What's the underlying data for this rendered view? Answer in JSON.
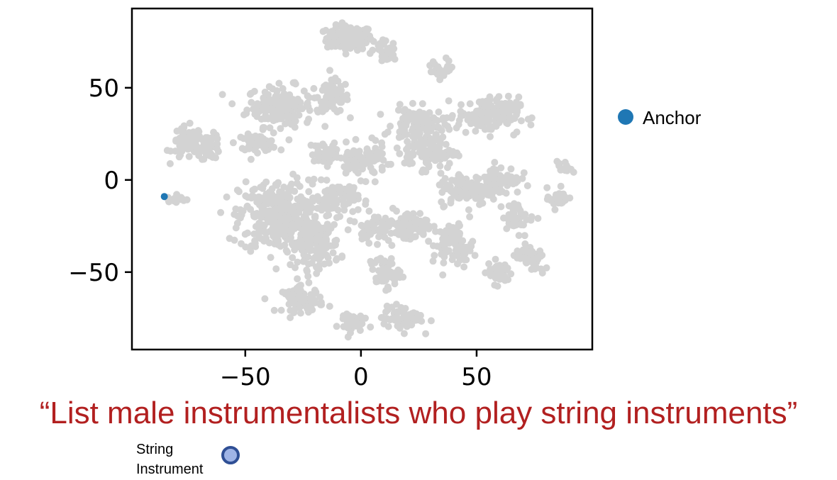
{
  "chart_data": {
    "type": "scatter",
    "title": "",
    "xlabel": "",
    "ylabel": "",
    "xlim": [
      -99,
      100
    ],
    "ylim": [
      -92,
      93
    ],
    "x_ticks": [
      -50,
      0,
      50
    ],
    "y_ticks": [
      50,
      0,
      -50
    ],
    "x_tick_labels": [
      "−50",
      "0",
      "50"
    ],
    "y_tick_labels": [
      "50",
      "0",
      "−50"
    ],
    "grid": false,
    "legend_position": "right",
    "background_color": "#d3d3d3",
    "series": [
      {
        "name": "",
        "color": "#d3d3d3",
        "note_clusters": "dense gray point clouds; each cluster given as center x, center y, spread x, spread y, relative density",
        "clusters": [
          [
            -5,
            77,
            9,
            6,
            1.0
          ],
          [
            -35,
            40,
            13,
            10,
            1.2
          ],
          [
            -12,
            45,
            6,
            8,
            0.6
          ],
          [
            -75,
            20,
            6,
            8,
            0.5
          ],
          [
            -65,
            18,
            4,
            6,
            0.3
          ],
          [
            -45,
            20,
            8,
            4,
            0.4
          ],
          [
            -35,
            -20,
            16,
            18,
            2.6
          ],
          [
            -20,
            -35,
            10,
            12,
            1.0
          ],
          [
            -25,
            -65,
            8,
            6,
            0.5
          ],
          [
            -10,
            -10,
            8,
            8,
            0.6
          ],
          [
            0,
            10,
            10,
            8,
            0.7
          ],
          [
            25,
            30,
            10,
            8,
            0.8
          ],
          [
            55,
            35,
            12,
            9,
            1.1
          ],
          [
            30,
            15,
            10,
            8,
            0.8
          ],
          [
            45,
            -5,
            10,
            8,
            0.8
          ],
          [
            60,
            0,
            8,
            7,
            0.6
          ],
          [
            20,
            -25,
            8,
            8,
            0.6
          ],
          [
            40,
            -35,
            8,
            10,
            0.6
          ],
          [
            10,
            -50,
            6,
            8,
            0.4
          ],
          [
            18,
            -75,
            8,
            6,
            0.5
          ],
          [
            -5,
            -77,
            5,
            5,
            0.3
          ],
          [
            60,
            -50,
            5,
            6,
            0.3
          ],
          [
            70,
            -40,
            4,
            5,
            0.2
          ],
          [
            75,
            -45,
            4,
            6,
            0.2
          ],
          [
            85,
            -10,
            4,
            5,
            0.2
          ],
          [
            88,
            7,
            3,
            3,
            0.1
          ],
          [
            -80,
            -10,
            4,
            3,
            0.15
          ],
          [
            10,
            70,
            5,
            5,
            0.2
          ],
          [
            35,
            60,
            5,
            5,
            0.2
          ],
          [
            68,
            -20,
            6,
            6,
            0.3
          ],
          [
            -15,
            15,
            6,
            5,
            0.3
          ],
          [
            5,
            -25,
            6,
            6,
            0.4
          ]
        ]
      },
      {
        "name": "Anchor",
        "color": "#1f77b4",
        "x": [
          -85
        ],
        "y": [
          -9
        ]
      }
    ],
    "legend": [
      {
        "label": "Anchor",
        "color": "#1f77b4"
      }
    ]
  },
  "caption": "“List male instrumentalists who play string instruments”",
  "marker_label": {
    "line1": "String",
    "line2": "Instrument",
    "color": "#9fb4e6",
    "border_color": "#2f4f95"
  }
}
